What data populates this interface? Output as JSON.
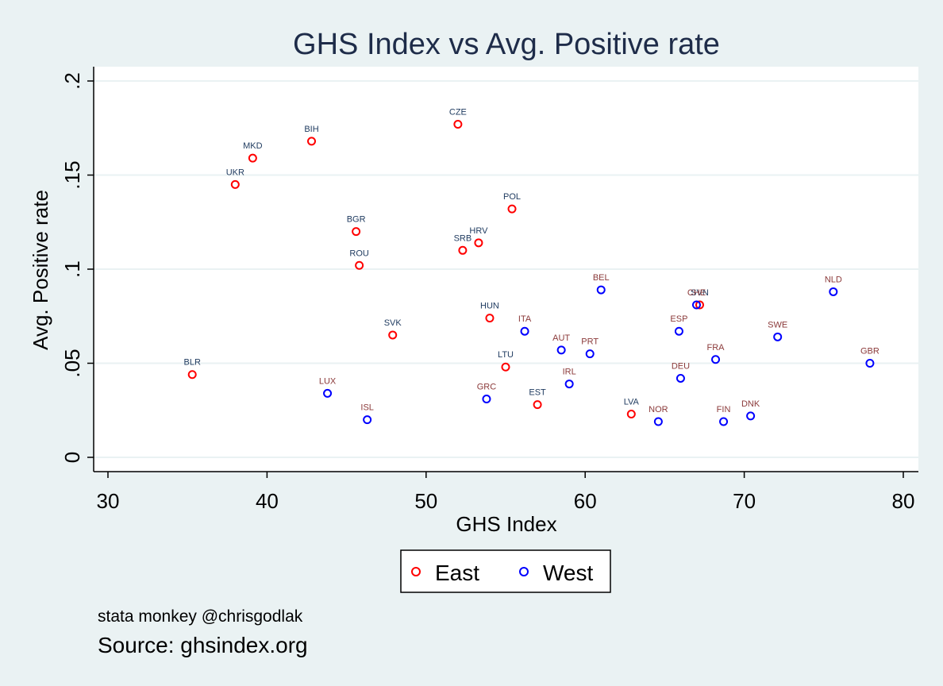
{
  "chart_data": {
    "type": "scatter",
    "title": "GHS Index vs Avg. Positive rate",
    "xlabel": "GHS Index",
    "ylabel": "Avg. Positive rate",
    "xlim": [
      30,
      80
    ],
    "ylim": [
      0,
      0.2
    ],
    "xticks": [
      30,
      40,
      50,
      60,
      70,
      80
    ],
    "xtick_labels": [
      "30",
      "40",
      "50",
      "60",
      "70",
      "80"
    ],
    "yticks": [
      0,
      0.05,
      0.1,
      0.15,
      0.2
    ],
    "ytick_labels": [
      "0",
      ".05",
      ".1",
      ".15",
      ".2"
    ],
    "grid": "horizontal",
    "legend_position": "bottom",
    "colors": {
      "East": "#ff0000",
      "West": "#0000ff",
      "East_label": "#1e3a5f",
      "West_label": "#8b3a3a",
      "title": "#1e2c49",
      "plot_bg": "#ffffff",
      "outer_bg": "#eaf2f3",
      "grid": "#eaf2f3"
    },
    "series": [
      {
        "name": "East",
        "points": [
          {
            "label": "BLR",
            "x": 35.3,
            "y": 0.044
          },
          {
            "label": "UKR",
            "x": 38.0,
            "y": 0.145
          },
          {
            "label": "MKD",
            "x": 39.1,
            "y": 0.159
          },
          {
            "label": "BIH",
            "x": 42.8,
            "y": 0.168
          },
          {
            "label": "BGR",
            "x": 45.6,
            "y": 0.12
          },
          {
            "label": "ROU",
            "x": 45.8,
            "y": 0.102
          },
          {
            "label": "SVK",
            "x": 47.9,
            "y": 0.065
          },
          {
            "label": "CZE",
            "x": 52.0,
            "y": 0.177
          },
          {
            "label": "SRB",
            "x": 52.3,
            "y": 0.11
          },
          {
            "label": "HRV",
            "x": 53.3,
            "y": 0.114
          },
          {
            "label": "HUN",
            "x": 54.0,
            "y": 0.074
          },
          {
            "label": "LTU",
            "x": 55.0,
            "y": 0.048
          },
          {
            "label": "POL",
            "x": 55.4,
            "y": 0.132
          },
          {
            "label": "EST",
            "x": 57.0,
            "y": 0.028
          },
          {
            "label": "LVA",
            "x": 62.9,
            "y": 0.023
          },
          {
            "label": "SVN",
            "x": 67.2,
            "y": 0.081
          }
        ]
      },
      {
        "name": "West",
        "points": [
          {
            "label": "LUX",
            "x": 43.8,
            "y": 0.034
          },
          {
            "label": "ISL",
            "x": 46.3,
            "y": 0.02
          },
          {
            "label": "GRC",
            "x": 53.8,
            "y": 0.031
          },
          {
            "label": "ITA",
            "x": 56.2,
            "y": 0.067
          },
          {
            "label": "AUT",
            "x": 58.5,
            "y": 0.057
          },
          {
            "label": "IRL",
            "x": 59.0,
            "y": 0.039
          },
          {
            "label": "PRT",
            "x": 60.3,
            "y": 0.055
          },
          {
            "label": "BEL",
            "x": 61.0,
            "y": 0.089
          },
          {
            "label": "NOR",
            "x": 64.6,
            "y": 0.019
          },
          {
            "label": "ESP",
            "x": 65.9,
            "y": 0.067
          },
          {
            "label": "DEU",
            "x": 66.0,
            "y": 0.042
          },
          {
            "label": "CHE",
            "x": 67.0,
            "y": 0.081
          },
          {
            "label": "FRA",
            "x": 68.2,
            "y": 0.052
          },
          {
            "label": "FIN",
            "x": 68.7,
            "y": 0.019
          },
          {
            "label": "DNK",
            "x": 70.4,
            "y": 0.022
          },
          {
            "label": "SWE",
            "x": 72.1,
            "y": 0.064
          },
          {
            "label": "NLD",
            "x": 75.6,
            "y": 0.088
          },
          {
            "label": "GBR",
            "x": 77.9,
            "y": 0.05
          }
        ]
      }
    ],
    "note": "stata monkey @chrisgodlak",
    "caption": "Source: ghsindex.org"
  }
}
